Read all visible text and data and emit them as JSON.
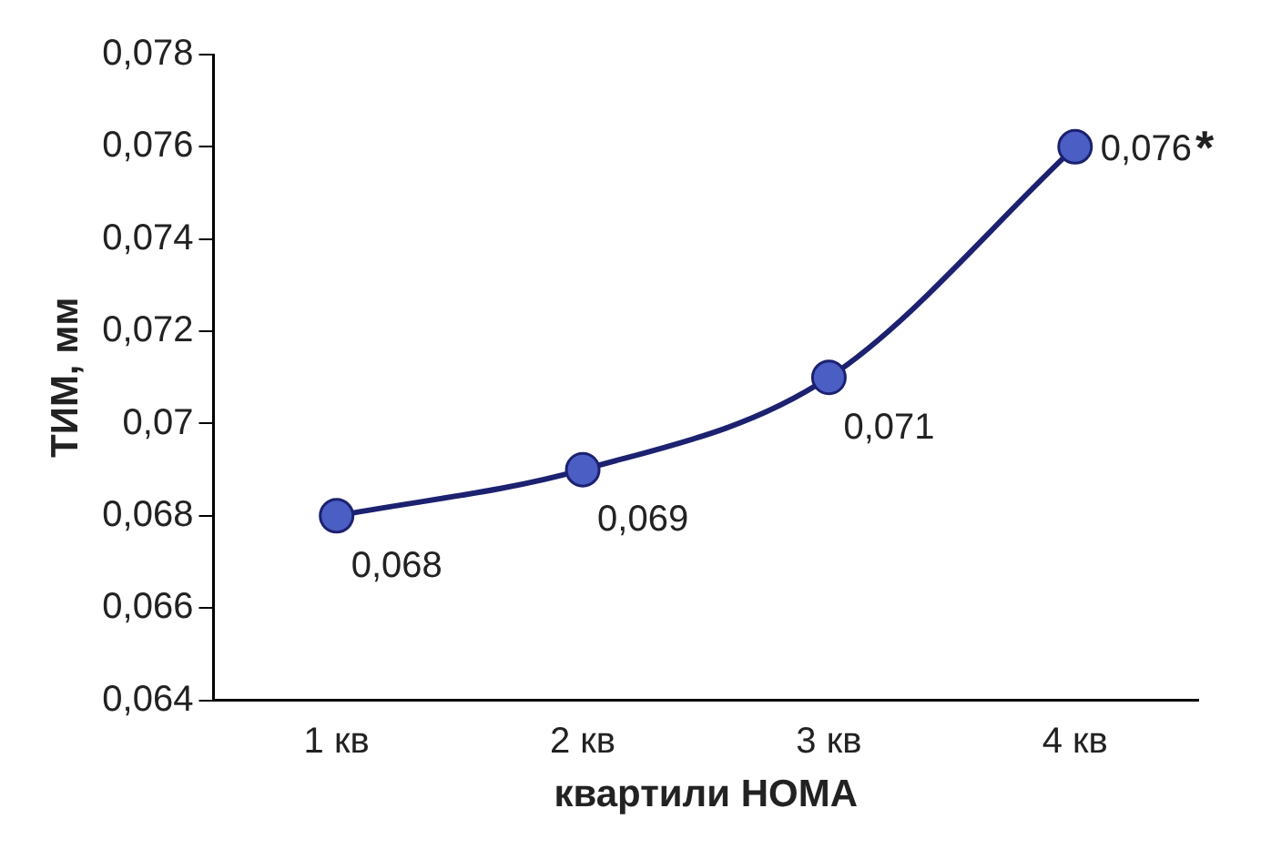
{
  "chart_data": {
    "type": "line",
    "xlabel": "квартили HOMA",
    "ylabel": "ТИМ, мм",
    "categories": [
      "1 кв",
      "2 кв",
      "3 кв",
      "4 кв"
    ],
    "series": [
      {
        "color": "#1c2170",
        "values": [
          0.068,
          0.069,
          0.071,
          0.076
        ],
        "value_labels": [
          "0,068",
          "0,069",
          "0,071",
          "0,076"
        ]
      }
    ],
    "marker": "circle",
    "line_style": "solid",
    "grid": false,
    "legend": false,
    "ylim": [
      0.064,
      0.078
    ],
    "yticks": [
      {
        "value": 0.064,
        "label": "0,064"
      },
      {
        "value": 0.066,
        "label": "0,066"
      },
      {
        "value": 0.068,
        "label": "0,068"
      },
      {
        "value": 0.07,
        "label": "0,07"
      },
      {
        "value": 0.072,
        "label": "0,072"
      },
      {
        "value": 0.074,
        "label": "0,074"
      },
      {
        "value": 0.076,
        "label": "0,076"
      },
      {
        "value": 0.078,
        "label": "0,078"
      }
    ],
    "annotations": [
      {
        "text": "*",
        "x": "4 кв",
        "y": 0.076
      }
    ]
  }
}
